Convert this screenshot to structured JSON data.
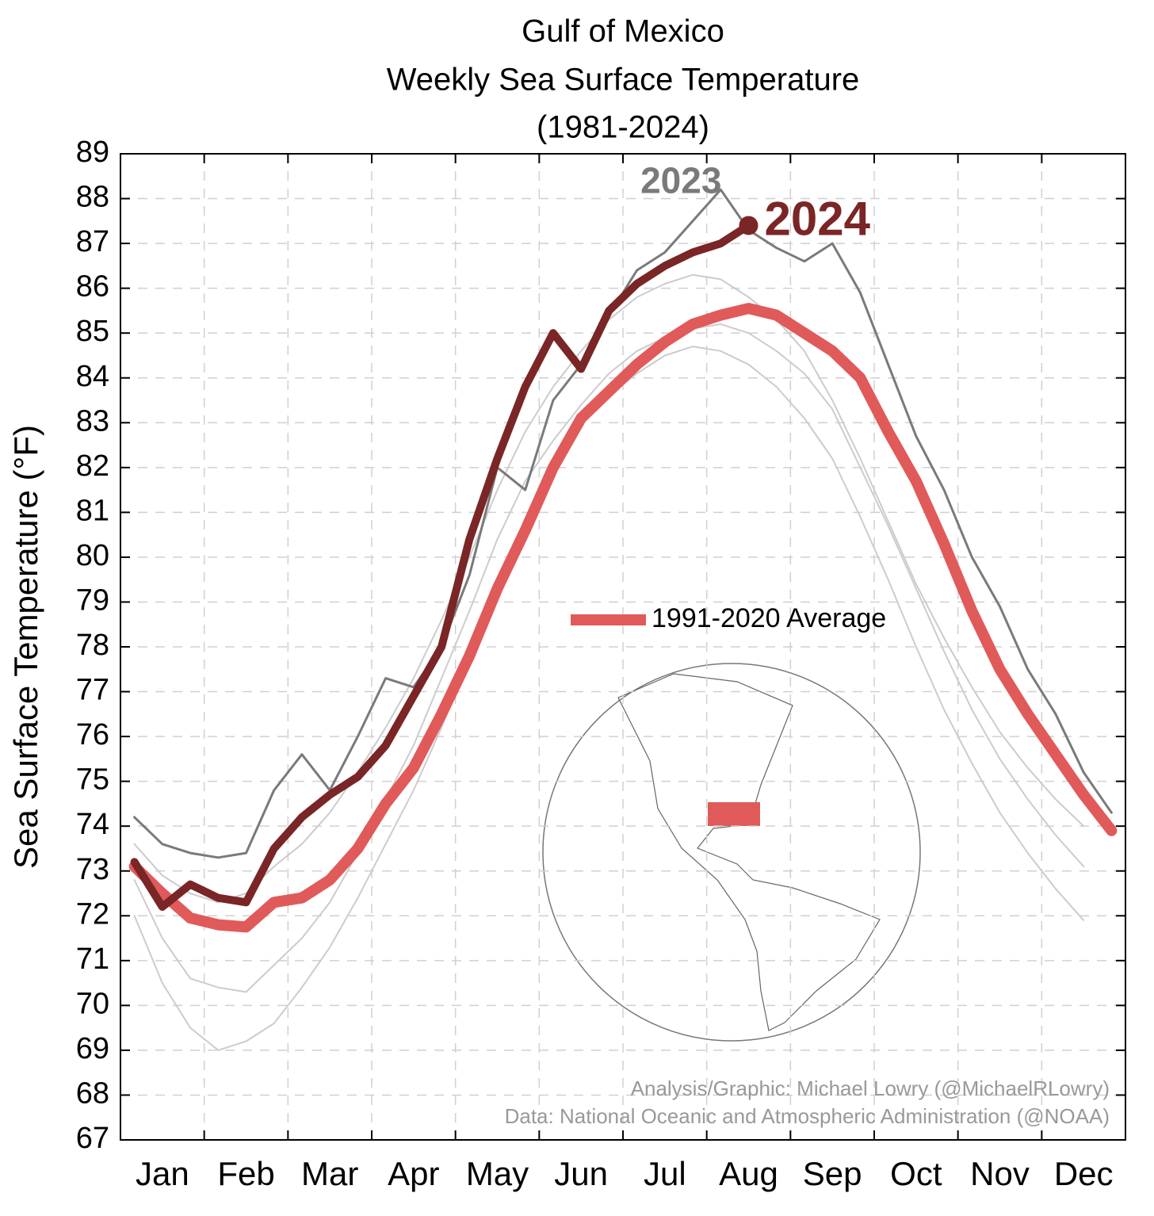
{
  "chart_data": {
    "type": "line",
    "title": "Gulf of Mexico",
    "subtitle": "Weekly Sea Surface Temperature",
    "period": "(1981-2024)",
    "y_label": "Sea Surface Temperature (°F)",
    "categories": [
      null,
      "Jan",
      null,
      null,
      "Feb",
      null,
      null,
      "Mar",
      null,
      null,
      "Apr",
      null,
      null,
      "May",
      null,
      null,
      "Jun",
      null,
      null,
      "Jul",
      null,
      null,
      "Aug",
      null,
      null,
      "Sep",
      null,
      null,
      "Oct",
      null,
      null,
      "Nov",
      null,
      null,
      "Dec",
      null
    ],
    "ylim": [
      67,
      89
    ],
    "yticks": [
      67,
      68,
      69,
      70,
      71,
      72,
      73,
      74,
      75,
      76,
      77,
      78,
      79,
      80,
      81,
      82,
      83,
      84,
      85,
      86,
      87,
      88,
      89
    ],
    "grid": true,
    "background_series": [
      {
        "color": "#cccccc",
        "values": [
          72.8,
          71.5,
          70.6,
          70.4,
          70.3,
          70.9,
          71.5,
          72.3,
          73.4,
          74.6,
          75.8,
          77.3,
          78.8,
          80.4,
          81.7,
          82.6,
          83.4,
          84.1,
          84.6,
          84.9,
          85.1,
          85.2,
          85.0,
          84.6,
          84.1,
          83.3,
          82.0,
          80.7,
          79.3,
          77.9,
          76.6,
          75.5,
          74.6,
          73.8,
          73.1
        ]
      },
      {
        "color": "#cccccc",
        "values": [
          73.6,
          72.9,
          72.5,
          72.3,
          72.5,
          73.1,
          73.6,
          74.3,
          75.2,
          76.2,
          77.3,
          78.6,
          80.0,
          81.5,
          82.8,
          83.8,
          84.6,
          85.3,
          85.8,
          86.1,
          86.3,
          86.2,
          85.8,
          85.3,
          84.6,
          83.5,
          82.2,
          80.8,
          79.4,
          78.2,
          77.1,
          76.1,
          75.3,
          74.6,
          74.0
        ]
      },
      {
        "color": "#cccccc",
        "values": [
          72.0,
          70.5,
          69.5,
          69.0,
          69.2,
          69.6,
          70.4,
          71.3,
          72.4,
          73.6,
          74.8,
          76.2,
          77.8,
          79.4,
          80.8,
          82.0,
          83.0,
          83.6,
          84.1,
          84.5,
          84.7,
          84.6,
          84.3,
          83.8,
          83.1,
          82.2,
          80.9,
          79.5,
          78.0,
          76.6,
          75.4,
          74.3,
          73.4,
          72.6,
          71.9
        ]
      }
    ],
    "series": [
      {
        "name": "1991-2020 Average",
        "color": "#e05a5a",
        "values": [
          73.1,
          72.5,
          71.95,
          71.8,
          71.75,
          72.3,
          72.4,
          72.8,
          73.5,
          74.5,
          75.3,
          76.5,
          77.8,
          79.3,
          80.6,
          82.0,
          83.1,
          83.7,
          84.3,
          84.8,
          85.2,
          85.4,
          85.55,
          85.4,
          85.0,
          84.6,
          84.0,
          82.8,
          81.7,
          80.3,
          78.8,
          77.5,
          76.5,
          75.6,
          74.7,
          73.9
        ]
      },
      {
        "name": "2023",
        "color": "#7a7a7a",
        "values": [
          74.2,
          73.6,
          73.4,
          73.3,
          73.4,
          74.8,
          75.6,
          74.8,
          76.0,
          77.3,
          77.1,
          78.0,
          79.6,
          82.0,
          81.5,
          83.5,
          84.3,
          85.4,
          86.4,
          86.8,
          87.5,
          88.2,
          87.3,
          86.9,
          86.6,
          87.0,
          85.9,
          84.3,
          82.7,
          81.5,
          80.0,
          78.9,
          77.5,
          76.5,
          75.2,
          74.3
        ]
      },
      {
        "name": "2024",
        "color": "#7a2526",
        "values": [
          73.2,
          72.2,
          72.7,
          72.4,
          72.3,
          73.5,
          74.2,
          74.7,
          75.1,
          75.8,
          76.9,
          78.0,
          80.4,
          82.2,
          83.8,
          85.0,
          84.2,
          85.5,
          86.1,
          86.5,
          86.8,
          87.0,
          87.4,
          null,
          null,
          null,
          null,
          null,
          null,
          null,
          null,
          null,
          null,
          null,
          null,
          null
        ]
      }
    ],
    "credit": "Analysis/Graphic: Michael Lowry (@MichaelRLowry)",
    "source": "Data: National Oceanic and Atmospheric Administration (@NOAA)"
  }
}
